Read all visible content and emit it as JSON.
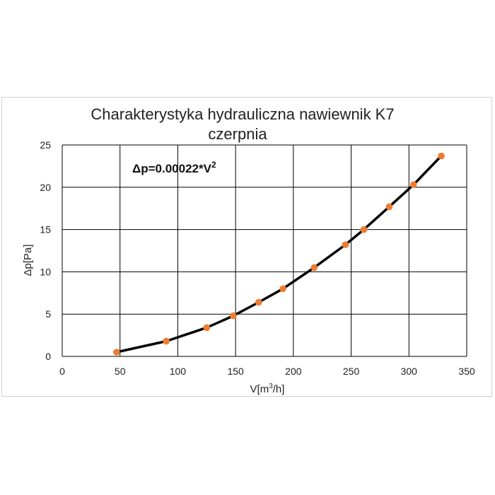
{
  "chart_data": {
    "type": "line",
    "title_line1": "Charakterystyka hydrauliczna nawiewnik K7",
    "title_line2": "czerpnia",
    "xlabel_base": "V[m",
    "xlabel_sup": "3",
    "xlabel_tail": "/h]",
    "ylabel": "Δp[Pa]",
    "annotation_base": "Δp=0.00022*V",
    "annotation_sup": "2",
    "xlim": [
      0,
      350
    ],
    "ylim": [
      0,
      25
    ],
    "x_ticks": [
      0,
      50,
      100,
      150,
      200,
      250,
      300,
      350
    ],
    "y_ticks": [
      0,
      5,
      10,
      15,
      20,
      25
    ],
    "grid": true,
    "line_color": "#000000",
    "marker_color": "#ed7d31",
    "series": [
      {
        "x": [
          47,
          90,
          125,
          148,
          170,
          191,
          218,
          245,
          261,
          283,
          304,
          328
        ],
        "y": [
          0.5,
          1.8,
          3.4,
          4.8,
          6.4,
          8.0,
          10.5,
          13.2,
          15.0,
          17.7,
          20.3,
          23.7
        ]
      }
    ]
  }
}
